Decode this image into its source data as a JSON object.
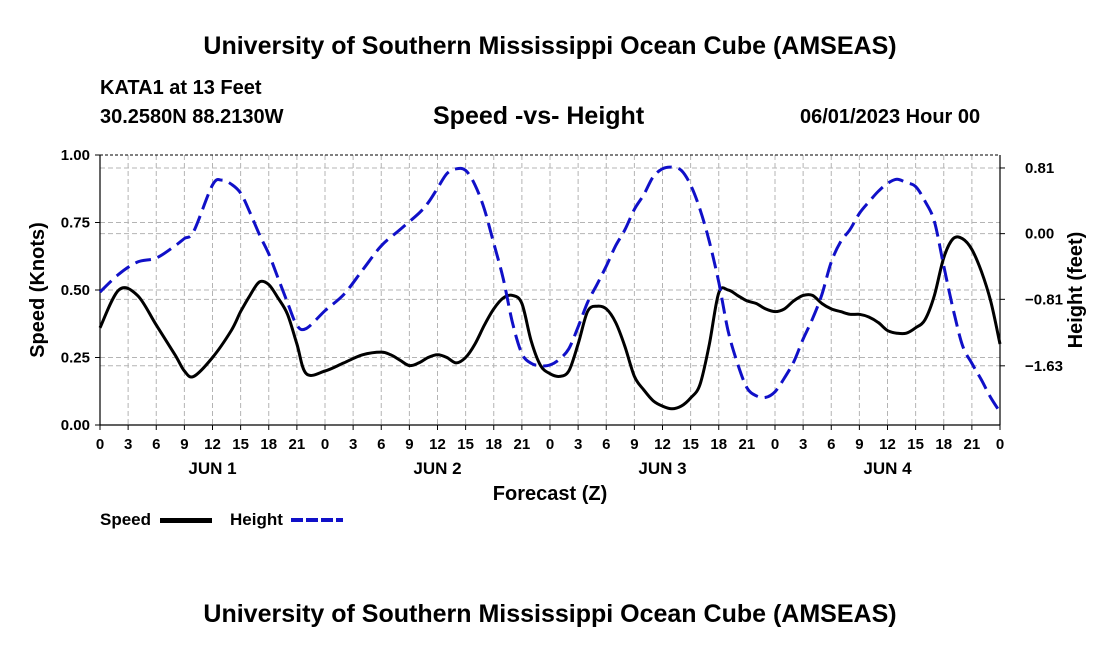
{
  "header": {
    "title": "University of Southern Mississippi Ocean Cube (AMSEAS)",
    "station": "KATA1 at 13 Feet",
    "coords": "30.2580N  88.2130W",
    "subtitle": "Speed -vs- Height",
    "datetime": "06/01/2023 Hour 00"
  },
  "footer": {
    "title": "University of Southern Mississippi Ocean Cube (AMSEAS)"
  },
  "legend": {
    "speed_label": "Speed",
    "height_label": "Height"
  },
  "colors": {
    "speed": "#000000",
    "height": "#1010c8",
    "grid": "#b4b4b4"
  },
  "chart_data": {
    "type": "line",
    "title": "Speed -vs- Height",
    "xlabel": "Forecast (Z)",
    "ylabel": "Speed (Knots)",
    "y2label": "Height (feet)",
    "xlim": [
      0,
      96
    ],
    "ylim": [
      0,
      1
    ],
    "y2lim": [
      -2.36,
      0.97
    ],
    "x_ticks": [
      0,
      3,
      6,
      9,
      12,
      15,
      18,
      21,
      24,
      27,
      30,
      33,
      36,
      39,
      42,
      45,
      48,
      51,
      54,
      57,
      60,
      63,
      66,
      69,
      72,
      75,
      78,
      81,
      84,
      87,
      90,
      93,
      96
    ],
    "x_tick_labels": [
      "0",
      "3",
      "6",
      "9",
      "12",
      "15",
      "18",
      "21",
      "0",
      "3",
      "6",
      "9",
      "12",
      "15",
      "18",
      "21",
      "0",
      "3",
      "6",
      "9",
      "12",
      "15",
      "18",
      "21",
      "0",
      "3",
      "6",
      "9",
      "12",
      "15",
      "18",
      "21",
      "0"
    ],
    "day_labels": [
      {
        "x": 12,
        "label": "JUN 1"
      },
      {
        "x": 36,
        "label": "JUN 2"
      },
      {
        "x": 60,
        "label": "JUN 3"
      },
      {
        "x": 84,
        "label": "JUN 4"
      }
    ],
    "y_ticks": [
      0,
      0.25,
      0.5,
      0.75,
      1.0
    ],
    "y_tick_labels": [
      "0.00",
      "0.25",
      "0.50",
      "0.75",
      "1.00"
    ],
    "y2_ticks": [
      0.81,
      0,
      -0.81,
      -1.63
    ],
    "y2_tick_labels": [
      "0.81",
      "0.00",
      "−0.81",
      "−1.63"
    ],
    "grid": true,
    "series": [
      {
        "name": "Speed",
        "axis": "left",
        "style": "solid",
        "x": [
          0,
          2,
          4,
          6,
          8,
          9,
          10,
          12,
          14,
          15,
          16,
          17,
          18,
          19,
          20,
          21,
          22,
          24,
          26,
          28,
          30,
          31,
          32,
          33,
          34,
          35,
          36,
          37,
          38,
          39,
          40,
          41,
          42,
          43,
          44,
          45,
          46,
          47,
          48,
          49,
          50,
          51,
          52,
          53,
          54,
          55,
          56,
          57,
          58,
          59,
          60,
          61,
          62,
          63,
          64,
          65,
          66,
          67,
          68,
          69,
          70,
          71,
          72,
          73,
          74,
          75,
          76,
          77,
          78,
          79,
          80,
          81,
          82,
          83,
          84,
          85,
          86,
          87,
          88,
          89,
          90,
          91,
          92,
          93,
          94,
          95,
          96
        ],
        "values": [
          0.36,
          0.5,
          0.48,
          0.37,
          0.26,
          0.2,
          0.18,
          0.25,
          0.35,
          0.42,
          0.48,
          0.53,
          0.52,
          0.47,
          0.41,
          0.3,
          0.19,
          0.2,
          0.23,
          0.26,
          0.27,
          0.26,
          0.24,
          0.22,
          0.23,
          0.25,
          0.26,
          0.25,
          0.23,
          0.25,
          0.3,
          0.37,
          0.43,
          0.47,
          0.48,
          0.45,
          0.31,
          0.22,
          0.19,
          0.18,
          0.2,
          0.3,
          0.42,
          0.44,
          0.43,
          0.38,
          0.29,
          0.18,
          0.13,
          0.09,
          0.07,
          0.06,
          0.07,
          0.1,
          0.15,
          0.3,
          0.49,
          0.5,
          0.48,
          0.46,
          0.45,
          0.43,
          0.42,
          0.43,
          0.46,
          0.48,
          0.48,
          0.45,
          0.43,
          0.42,
          0.41,
          0.41,
          0.4,
          0.38,
          0.35,
          0.34,
          0.34,
          0.36,
          0.39,
          0.48,
          0.62,
          0.69,
          0.69,
          0.65,
          0.57,
          0.46,
          0.3
        ]
      },
      {
        "name": "Height",
        "axis": "right",
        "style": "dashed",
        "x": [
          0,
          2,
          4,
          6,
          8,
          9,
          10,
          12,
          13,
          14,
          15,
          16,
          17,
          18,
          19,
          20,
          21,
          22,
          24,
          26,
          28,
          30,
          32,
          34,
          35,
          36,
          37,
          38,
          39,
          40,
          41,
          42,
          43,
          44,
          45,
          46,
          47,
          48,
          49,
          50,
          51,
          52,
          53,
          54,
          55,
          56,
          57,
          58,
          59,
          60,
          61,
          62,
          63,
          64,
          65,
          66,
          67,
          68,
          69,
          70,
          71,
          72,
          73,
          74,
          75,
          76,
          77,
          78,
          79,
          80,
          81,
          82,
          83,
          84,
          85,
          86,
          87,
          88,
          89,
          90,
          91,
          92,
          93,
          94,
          95,
          96
        ],
        "values": [
          -0.72,
          -0.5,
          -0.35,
          -0.3,
          -0.15,
          -0.06,
          0.03,
          0.6,
          0.66,
          0.61,
          0.5,
          0.26,
          -0.01,
          -0.25,
          -0.55,
          -0.85,
          -1.13,
          -1.17,
          -0.95,
          -0.75,
          -0.45,
          -0.15,
          0.05,
          0.25,
          0.38,
          0.56,
          0.74,
          0.8,
          0.78,
          0.6,
          0.3,
          -0.12,
          -0.55,
          -1.1,
          -1.48,
          -1.6,
          -1.63,
          -1.62,
          -1.55,
          -1.42,
          -1.15,
          -0.85,
          -0.63,
          -0.4,
          -0.15,
          0.05,
          0.3,
          0.48,
          0.7,
          0.8,
          0.82,
          0.78,
          0.6,
          0.3,
          -0.1,
          -0.6,
          -1.2,
          -1.6,
          -1.9,
          -2.0,
          -2.02,
          -1.95,
          -1.78,
          -1.58,
          -1.3,
          -1.05,
          -0.75,
          -0.35,
          -0.1,
          0.05,
          0.25,
          0.39,
          0.52,
          0.62,
          0.67,
          0.63,
          0.58,
          0.4,
          0.15,
          -0.4,
          -0.93,
          -1.38,
          -1.6,
          -1.8,
          -2.02,
          -2.2
        ]
      }
    ]
  }
}
